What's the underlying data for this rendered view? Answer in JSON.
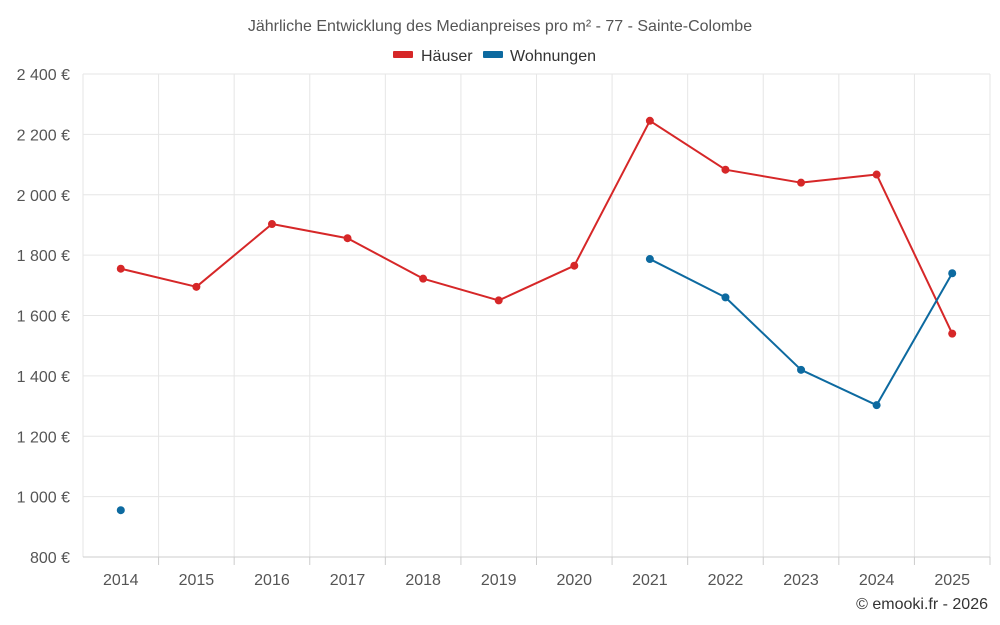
{
  "chart_data": {
    "type": "line",
    "title": "Jährliche Entwicklung des Medianpreises pro m² - 77 - Sainte-Colombe",
    "categories": [
      "2014",
      "2015",
      "2016",
      "2017",
      "2018",
      "2019",
      "2020",
      "2021",
      "2022",
      "2023",
      "2024",
      "2025"
    ],
    "ylim": [
      800,
      2400
    ],
    "ytick_step": 200,
    "ytick_labels": [
      "800 €",
      "1 000 €",
      "1 200 €",
      "1 400 €",
      "1 600 €",
      "1 800 €",
      "2 000 €",
      "2 200 €",
      "2 400 €"
    ],
    "grid": true,
    "legend_position": "top-center",
    "series": [
      {
        "name": "Häuser",
        "color": "#d62728",
        "values": [
          1755,
          1695,
          1903,
          1856,
          1722,
          1650,
          1765,
          2245,
          2083,
          2040,
          2067,
          1540
        ]
      },
      {
        "name": "Wohnungen",
        "color": "#0d6aa0",
        "values": [
          955,
          null,
          null,
          null,
          null,
          null,
          null,
          1787,
          1660,
          1420,
          1303,
          1740
        ]
      }
    ]
  },
  "credit": "© emooki.fr - 2026"
}
